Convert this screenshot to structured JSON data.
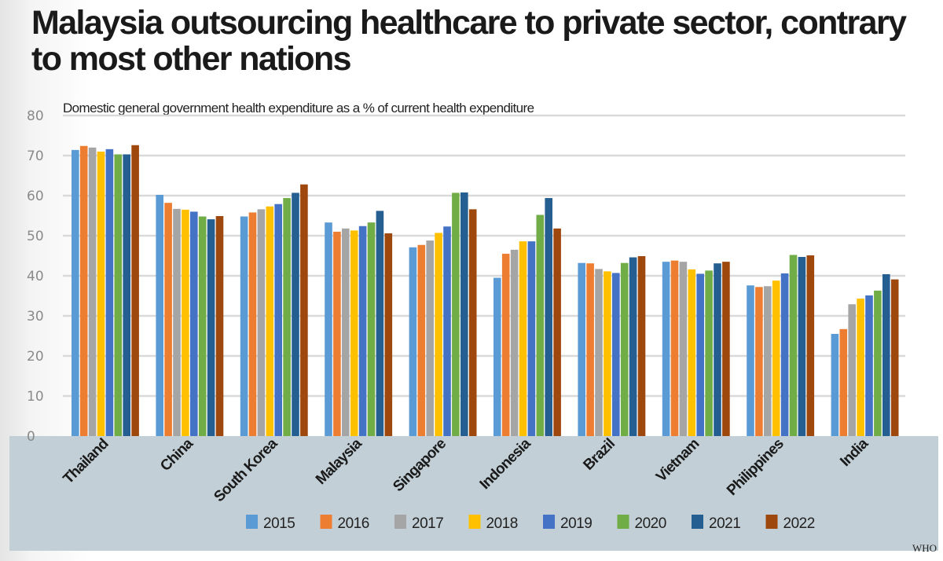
{
  "header": {
    "title": "Malaysia outsourcing healthcare to private sector, contrary to most other nations"
  },
  "source": "WHO",
  "chart_data": {
    "type": "bar",
    "title": "Malaysia outsourcing healthcare to private sector, contrary to most other nations",
    "subtitle": "Domestic general government health expenditure as a % of current health expenditure",
    "xlabel": "",
    "ylabel": "",
    "ylim": [
      0,
      80
    ],
    "yticks": [
      0,
      10,
      20,
      30,
      40,
      50,
      60,
      70,
      80
    ],
    "grid": true,
    "legend_position": "bottom",
    "categories": [
      "Thailand",
      "China",
      "South Korea",
      "Malaysia",
      "Singapore",
      "Indonesia",
      "Brazil",
      "Vietnam",
      "Philippines",
      "India"
    ],
    "series": [
      {
        "name": "2015",
        "color": "#5b9bd5",
        "values": [
          71.4,
          60.2,
          54.8,
          53.3,
          47.1,
          39.5,
          43.2,
          43.5,
          37.6,
          25.5
        ]
      },
      {
        "name": "2016",
        "color": "#ed7d31",
        "values": [
          72.4,
          58.2,
          55.8,
          51.0,
          47.7,
          45.5,
          43.1,
          43.8,
          37.2,
          26.7
        ]
      },
      {
        "name": "2017",
        "color": "#a5a5a5",
        "values": [
          72.0,
          56.7,
          56.6,
          51.8,
          48.8,
          46.5,
          41.7,
          43.5,
          37.4,
          32.9
        ]
      },
      {
        "name": "2018",
        "color": "#ffc000",
        "values": [
          71.0,
          56.5,
          57.3,
          51.3,
          50.7,
          48.6,
          41.1,
          41.6,
          38.8,
          34.3
        ]
      },
      {
        "name": "2019",
        "color": "#4472c4",
        "values": [
          71.6,
          56.0,
          57.9,
          52.4,
          52.3,
          48.6,
          40.7,
          40.5,
          40.6,
          35.1
        ]
      },
      {
        "name": "2020",
        "color": "#70ad47",
        "values": [
          70.3,
          54.8,
          59.4,
          53.3,
          60.7,
          55.2,
          43.2,
          41.3,
          45.2,
          36.3
        ]
      },
      {
        "name": "2021",
        "color": "#255e91",
        "values": [
          70.3,
          54.1,
          60.7,
          56.2,
          60.8,
          59.4,
          44.6,
          43.1,
          44.7,
          40.4
        ]
      },
      {
        "name": "2022",
        "color": "#9e480e",
        "values": [
          72.6,
          54.9,
          62.8,
          50.6,
          56.6,
          51.8,
          44.9,
          43.5,
          45.1,
          39.1
        ]
      }
    ]
  }
}
